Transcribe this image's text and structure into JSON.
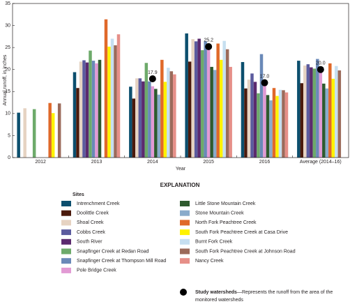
{
  "chart_data": {
    "type": "bar",
    "y_label": "Annual runoff, in inches",
    "x_label": "Year",
    "legend_title": "EXPLANATION",
    "legend_subtitle": "Sites",
    "categories": [
      "2012",
      "2013",
      "2014",
      "2015",
      "2016",
      "Average (2014–16)"
    ],
    "ylim": [
      0,
      35
    ],
    "yticks": [
      0,
      5,
      10,
      15,
      20,
      25,
      30,
      35
    ],
    "grid": false,
    "series": [
      {
        "name": "Intrenchment Creek",
        "color": "#0c4f6e",
        "values": [
          10.2,
          19.4,
          16.1,
          28.2,
          21.7,
          22.0
        ]
      },
      {
        "name": "Doolittle Creek",
        "color": "#4b1a0c",
        "values": [
          null,
          15.8,
          13.4,
          21.8,
          15.7,
          16.9
        ]
      },
      {
        "name": "Shoal Creek",
        "color": "#e6d3c2",
        "values": [
          11.2,
          21.8,
          18.0,
          26.9,
          17.7,
          20.9
        ]
      },
      {
        "name": "Cobbs Creek",
        "color": "#5b5b9e",
        "values": [
          null,
          22.1,
          18.0,
          26.4,
          19.1,
          21.2
        ]
      },
      {
        "name": "South River",
        "color": "#5b2a6e",
        "values": [
          null,
          21.6,
          17.3,
          27.0,
          17.2,
          20.5
        ]
      },
      {
        "name": "Snapfinger Creek at Redan Road",
        "color": "#6daa6a",
        "values": [
          11.0,
          24.3,
          21.5,
          24.4,
          14.6,
          20.2
        ]
      },
      {
        "name": "Snapfinger Creek at Thompson Mill Road",
        "color": "#6a89b8",
        "values": [
          null,
          22.0,
          17.3,
          26.4,
          23.5,
          22.4
        ]
      },
      {
        "name": "Pole Bridge Creek",
        "color": "#e29ad4",
        "values": [
          null,
          21.4,
          16.2,
          24.9,
          17.0,
          19.4
        ]
      },
      {
        "name": "Little Stone Mountain Creek",
        "color": "#2e5a2e",
        "values": [
          null,
          22.2,
          15.6,
          20.6,
          14.2,
          16.8
        ]
      },
      {
        "name": "Stone Mountain Creek",
        "color": "#8aabcb",
        "values": [
          null,
          null,
          14.3,
          19.9,
          13.0,
          15.7
        ]
      },
      {
        "name": "North Fork Peachtree Creek",
        "color": "#e0692a",
        "values": [
          12.4,
          31.4,
          22.2,
          25.9,
          15.8,
          21.4
        ]
      },
      {
        "name": "South Fork Peachtree Creek at Casa Drive",
        "color": "#fff200",
        "values": [
          10.1,
          25.2,
          17.2,
          22.2,
          14.0,
          17.9
        ]
      },
      {
        "name": "Burnt Fork Creek",
        "color": "#c6dff0",
        "values": [
          null,
          27.0,
          20.4,
          26.5,
          15.4,
          20.8
        ]
      },
      {
        "name": "South Fork Peachtree Creek at Johnson Road",
        "color": "#9b6a5a",
        "values": [
          12.3,
          25.5,
          19.6,
          24.6,
          15.3,
          19.8
        ]
      },
      {
        "name": "Nancy Creek",
        "color": "#e68f88",
        "values": [
          null,
          28.0,
          18.9,
          20.6,
          14.8,
          null
        ]
      }
    ],
    "markers": {
      "name": "Study watersheds",
      "description": "—Represents the runoff from the area of the monitored watersheds",
      "color": "#000000",
      "values": [
        null,
        null,
        17.9,
        25.2,
        17.0,
        20.0
      ],
      "value_labels": [
        null,
        null,
        "17.9",
        "25.2",
        "17.0",
        "20.0"
      ]
    }
  }
}
